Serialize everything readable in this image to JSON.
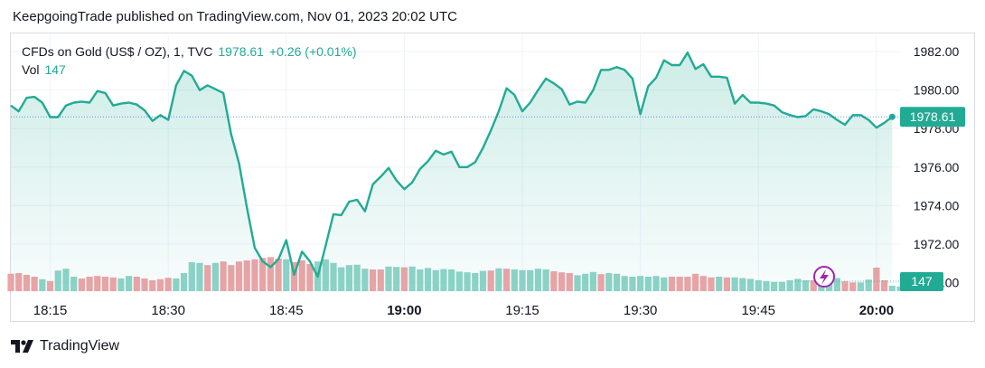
{
  "caption": "KeepgoingTrade published on TradingView.com, Nov 01, 2023 20:02 UTC",
  "legend": {
    "symbol": "CFDs on Gold (US$ / OZ), 1, TVC",
    "price": "1978.61",
    "change": "+0.26 (+0.01%)",
    "vol_label": "Vol",
    "vol_value": "147"
  },
  "brand": {
    "name": "TradingView",
    "logo_icon": "tradingview-logo-icon"
  },
  "badges": {
    "price": "1978.61",
    "volume": "147"
  },
  "colors": {
    "line": "#22ab94",
    "up_vol": "#8fd3c8",
    "down_vol": "#efa3a6",
    "badge": "#22ab94",
    "lightning": "#9c27b0"
  },
  "chart_data": {
    "type": "area",
    "y_ticks": [
      "1970.00",
      "1972.00",
      "1974.00",
      "1976.00",
      "1978.00",
      "1980.00",
      "1982.00"
    ],
    "ylim": [
      1969.5,
      1982.9
    ],
    "x_ticks": [
      {
        "label": "18:15",
        "minute": 5,
        "bold": false
      },
      {
        "label": "18:30",
        "minute": 20,
        "bold": false
      },
      {
        "label": "18:45",
        "minute": 35,
        "bold": false
      },
      {
        "label": "19:00",
        "minute": 50,
        "bold": true
      },
      {
        "label": "19:15",
        "minute": 65,
        "bold": false
      },
      {
        "label": "19:30",
        "minute": 80,
        "bold": false
      },
      {
        "label": "19:45",
        "minute": 95,
        "bold": false
      },
      {
        "label": "20:00",
        "minute": 110,
        "bold": true
      }
    ],
    "x_range_minutes": [
      0,
      113
    ],
    "last_price": 1978.61,
    "price": [
      1979.2,
      1978.9,
      1979.6,
      1979.65,
      1979.35,
      1978.6,
      1978.6,
      1979.2,
      1979.35,
      1979.4,
      1979.35,
      1979.95,
      1979.85,
      1979.2,
      1979.3,
      1979.35,
      1979.25,
      1978.95,
      1978.4,
      1978.7,
      1978.45,
      1980.25,
      1981.0,
      1980.75,
      1980.0,
      1980.25,
      1980.05,
      1979.85,
      1977.7,
      1976.2,
      1973.9,
      1971.8,
      1971.1,
      1970.8,
      1971.2,
      1972.2,
      1970.4,
      1971.6,
      1971.1,
      1970.3,
      1971.9,
      1973.55,
      1973.5,
      1974.2,
      1974.3,
      1973.7,
      1975.1,
      1975.5,
      1975.95,
      1975.3,
      1974.85,
      1975.2,
      1975.9,
      1976.3,
      1976.85,
      1976.65,
      1976.8,
      1976.0,
      1976.0,
      1976.25,
      1977.0,
      1977.9,
      1978.9,
      1980.1,
      1979.75,
      1978.9,
      1979.35,
      1980.0,
      1980.6,
      1980.35,
      1980.05,
      1979.25,
      1979.4,
      1979.35,
      1980.0,
      1981.05,
      1981.05,
      1981.2,
      1981.05,
      1980.6,
      1978.75,
      1980.2,
      1980.65,
      1981.55,
      1981.3,
      1981.3,
      1981.95,
      1981.1,
      1981.35,
      1980.7,
      1980.7,
      1980.65,
      1979.3,
      1979.75,
      1979.35,
      1979.35,
      1979.3,
      1979.2,
      1978.85,
      1978.7,
      1978.6,
      1978.65,
      1979.0,
      1978.9,
      1978.75,
      1978.45,
      1978.2,
      1978.7,
      1978.7,
      1978.45,
      1978.05,
      1978.3,
      1978.61
    ],
    "volume_scale_max": 100,
    "volume": [
      [
        48,
        0
      ],
      [
        50,
        0
      ],
      [
        45,
        0
      ],
      [
        40,
        0
      ],
      [
        33,
        1
      ],
      [
        28,
        0
      ],
      [
        57,
        1
      ],
      [
        62,
        1
      ],
      [
        40,
        1
      ],
      [
        35,
        0
      ],
      [
        40,
        0
      ],
      [
        42,
        0
      ],
      [
        40,
        0
      ],
      [
        38,
        0
      ],
      [
        35,
        1
      ],
      [
        42,
        1
      ],
      [
        40,
        0
      ],
      [
        35,
        0
      ],
      [
        30,
        0
      ],
      [
        33,
        0
      ],
      [
        37,
        0
      ],
      [
        35,
        1
      ],
      [
        50,
        1
      ],
      [
        80,
        1
      ],
      [
        78,
        1
      ],
      [
        72,
        0
      ],
      [
        78,
        1
      ],
      [
        82,
        0
      ],
      [
        72,
        0
      ],
      [
        82,
        0
      ],
      [
        85,
        0
      ],
      [
        88,
        0
      ],
      [
        92,
        0
      ],
      [
        94,
        0
      ],
      [
        90,
        0
      ],
      [
        88,
        1
      ],
      [
        80,
        0
      ],
      [
        85,
        0
      ],
      [
        75,
        0
      ],
      [
        82,
        1
      ],
      [
        88,
        1
      ],
      [
        78,
        1
      ],
      [
        66,
        1
      ],
      [
        72,
        1
      ],
      [
        73,
        1
      ],
      [
        62,
        1
      ],
      [
        60,
        0
      ],
      [
        60,
        0
      ],
      [
        68,
        1
      ],
      [
        67,
        1
      ],
      [
        66,
        0
      ],
      [
        68,
        1
      ],
      [
        60,
        1
      ],
      [
        64,
        1
      ],
      [
        58,
        1
      ],
      [
        61,
        1
      ],
      [
        60,
        1
      ],
      [
        54,
        1
      ],
      [
        52,
        1
      ],
      [
        50,
        1
      ],
      [
        56,
        1
      ],
      [
        57,
        0
      ],
      [
        63,
        1
      ],
      [
        62,
        0
      ],
      [
        60,
        1
      ],
      [
        58,
        1
      ],
      [
        58,
        1
      ],
      [
        62,
        1
      ],
      [
        60,
        1
      ],
      [
        55,
        0
      ],
      [
        52,
        0
      ],
      [
        50,
        0
      ],
      [
        44,
        1
      ],
      [
        48,
        1
      ],
      [
        53,
        1
      ],
      [
        47,
        0
      ],
      [
        50,
        1
      ],
      [
        48,
        1
      ],
      [
        42,
        1
      ],
      [
        40,
        1
      ],
      [
        42,
        1
      ],
      [
        40,
        1
      ],
      [
        42,
        1
      ],
      [
        38,
        1
      ],
      [
        40,
        0
      ],
      [
        40,
        0
      ],
      [
        40,
        0
      ],
      [
        48,
        0
      ],
      [
        42,
        0
      ],
      [
        38,
        0
      ],
      [
        40,
        1
      ],
      [
        38,
        0
      ],
      [
        38,
        1
      ],
      [
        36,
        1
      ],
      [
        34,
        1
      ],
      [
        30,
        1
      ],
      [
        28,
        1
      ],
      [
        26,
        1
      ],
      [
        26,
        1
      ],
      [
        30,
        1
      ],
      [
        34,
        1
      ],
      [
        30,
        1
      ],
      [
        30,
        0
      ],
      [
        30,
        1
      ],
      [
        30,
        1
      ],
      [
        36,
        1
      ],
      [
        27,
        0
      ],
      [
        24,
        0
      ],
      [
        24,
        1
      ],
      [
        32,
        1
      ],
      [
        65,
        0
      ],
      [
        30,
        0
      ],
      [
        15,
        1
      ],
      [
        13,
        1
      ]
    ]
  }
}
